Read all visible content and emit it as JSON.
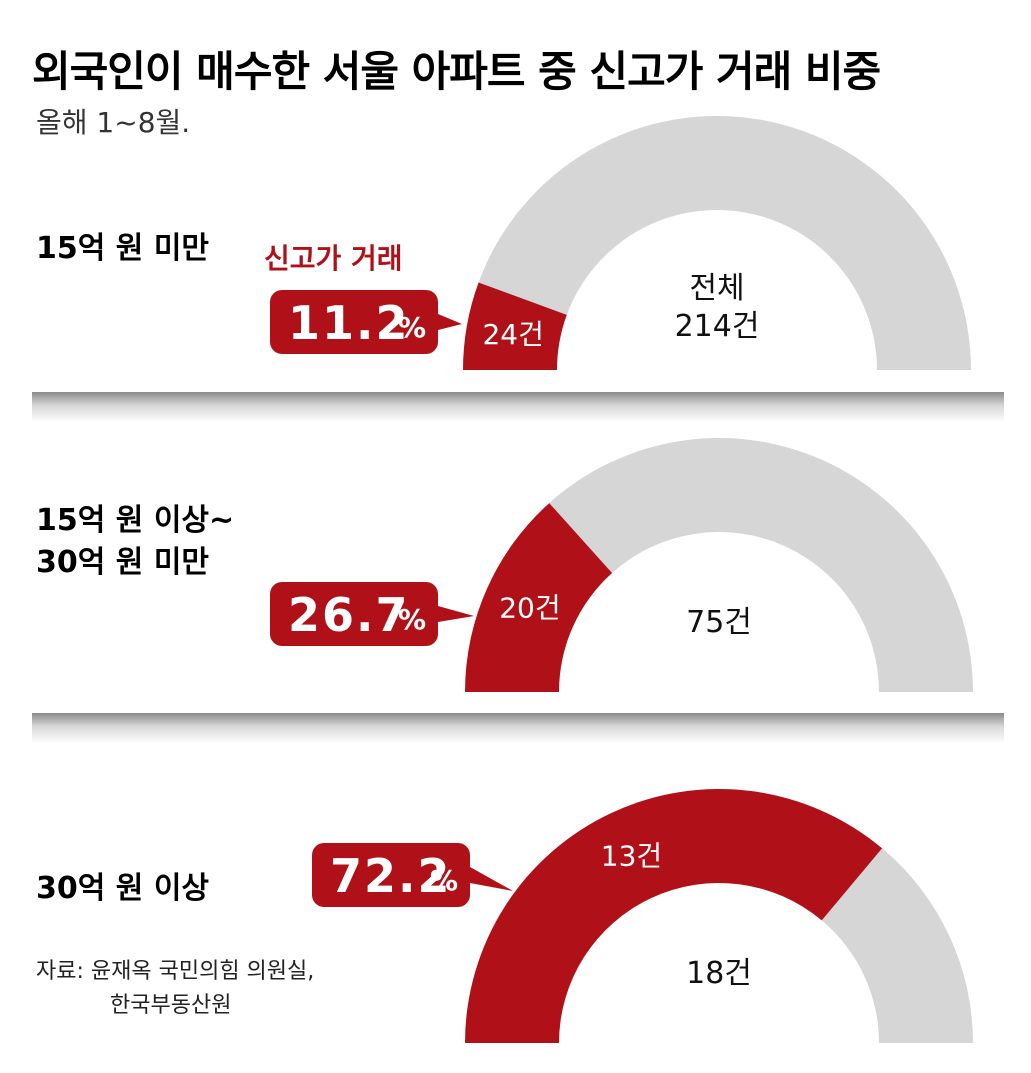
{
  "chart_data": {
    "type": "gauge",
    "title": "외국인이 매수한 서울 아파트 중 신고가 거래 비중",
    "subtitle": "올해 1~8월.",
    "highlight_legend": "신고가 거래",
    "total_legend": "전체",
    "percent_unit": "%",
    "colors": {
      "highlight": "#b01118",
      "rest": "#d6d6d6"
    },
    "categories": [
      {
        "label_lines": [
          "15억 원 미만"
        ],
        "percent": 11.2,
        "percent_text": "11.2",
        "highlight_count": "24건",
        "total_count": "214건"
      },
      {
        "label_lines": [
          "15억 원 이상~",
          "30억 원 미만"
        ],
        "percent": 26.7,
        "percent_text": "26.7",
        "highlight_count": "20건",
        "total_count": "75건"
      },
      {
        "label_lines": [
          "30억 원 이상"
        ],
        "percent": 72.2,
        "percent_text": "72.2",
        "highlight_count": "13건",
        "total_count": "18건"
      }
    ],
    "source_lines": [
      "자료: 윤재옥 국민의힘 의원실,",
      "한국부동산원"
    ]
  }
}
